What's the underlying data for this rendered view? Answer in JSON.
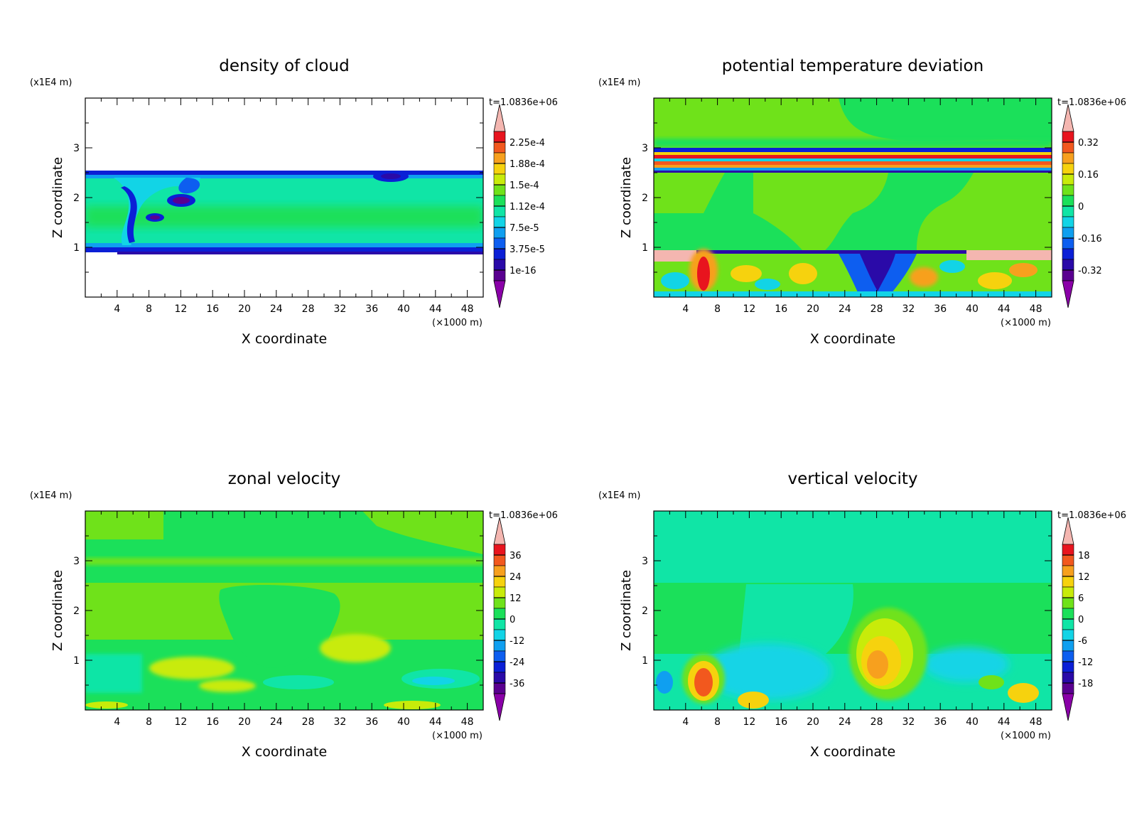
{
  "chart_data": [
    {
      "type": "heatmap",
      "title": "density of cloud",
      "xlabel": "X coordinate",
      "ylabel": "Z coordinate",
      "x_unit": "(×1000 m)",
      "y_unit": "(x1E4 m)",
      "time_label": "t=1.0836e+06",
      "xlim": [
        0,
        50
      ],
      "ylim": [
        0,
        4
      ],
      "xticks": [
        "4",
        "8",
        "12",
        "16",
        "20",
        "24",
        "28",
        "32",
        "36",
        "40",
        "44",
        "48"
      ],
      "yticks": [
        "1",
        "2",
        "3"
      ],
      "colorbar_labels": [
        "2.25e-4",
        "1.88e-4",
        "1.5e-4",
        "1.12e-4",
        "7.5e-5",
        "3.75e-5",
        "1e-16"
      ],
      "colorbar_colors": [
        "#f4b6b0",
        "#e8141e",
        "#f2581e",
        "#f7a01e",
        "#f6d20e",
        "#c8eb0a",
        "#6fe21a",
        "#1be05a",
        "#10e5a6",
        "#12d4e6",
        "#0f9ff0",
        "#0d5ef0",
        "#0b1fd6",
        "#2a0aa8",
        "#5a0090",
        "#8a00a8"
      ]
    },
    {
      "type": "heatmap",
      "title": "potential temperature deviation",
      "xlabel": "X coordinate",
      "ylabel": "Z coordinate",
      "x_unit": "(×1000 m)",
      "y_unit": "(x1E4 m)",
      "time_label": "t=1.0836e+06",
      "xlim": [
        0,
        50
      ],
      "ylim": [
        0,
        4
      ],
      "xticks": [
        "4",
        "8",
        "12",
        "16",
        "20",
        "24",
        "28",
        "32",
        "36",
        "40",
        "44",
        "48"
      ],
      "yticks": [
        "1",
        "2",
        "3"
      ],
      "colorbar_labels": [
        "0.32",
        "0.16",
        "0",
        "-0.16",
        "-0.32"
      ]
    },
    {
      "type": "heatmap",
      "title": "zonal velocity",
      "xlabel": "X coordinate",
      "ylabel": "Z coordinate",
      "x_unit": "(×1000 m)",
      "y_unit": "(x1E4 m)",
      "time_label": "t=1.0836e+06",
      "xlim": [
        0,
        50
      ],
      "ylim": [
        0,
        4
      ],
      "xticks": [
        "4",
        "8",
        "12",
        "16",
        "20",
        "24",
        "28",
        "32",
        "36",
        "40",
        "44",
        "48"
      ],
      "yticks": [
        "1",
        "2",
        "3"
      ],
      "colorbar_labels": [
        "36",
        "24",
        "12",
        "0",
        "-12",
        "-24",
        "-36"
      ]
    },
    {
      "type": "heatmap",
      "title": "vertical velocity",
      "xlabel": "X coordinate",
      "ylabel": "Z coordinate",
      "x_unit": "(×1000 m)",
      "y_unit": "(x1E4 m)",
      "time_label": "t=1.0836e+06",
      "xlim": [
        0,
        50
      ],
      "ylim": [
        0,
        4
      ],
      "xticks": [
        "4",
        "8",
        "12",
        "16",
        "20",
        "24",
        "28",
        "32",
        "36",
        "40",
        "44",
        "48"
      ],
      "yticks": [
        "1",
        "2",
        "3"
      ],
      "colorbar_labels": [
        "18",
        "12",
        "6",
        "0",
        "-6",
        "-12",
        "-18"
      ]
    }
  ]
}
